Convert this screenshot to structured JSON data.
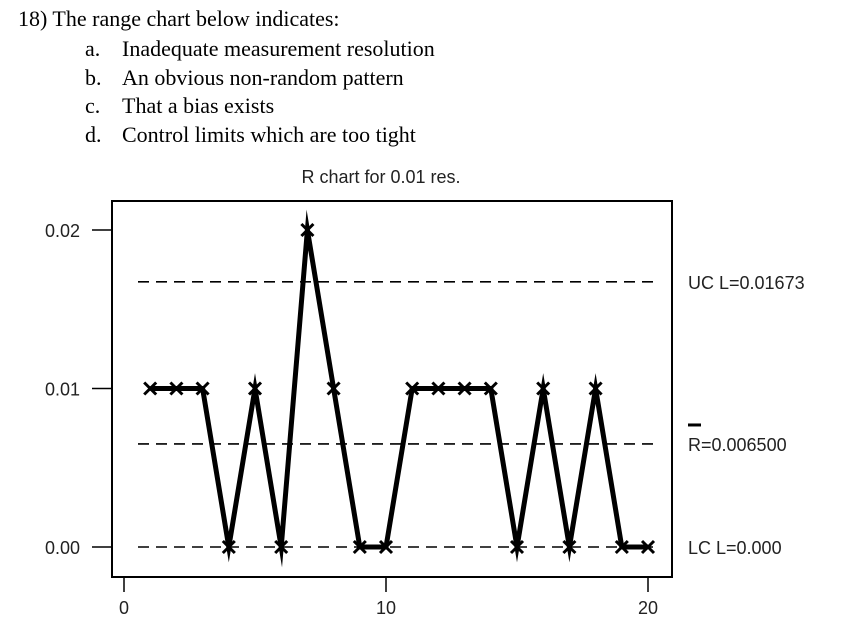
{
  "question": {
    "stem": "18) The range chart below indicates:",
    "options": [
      {
        "letter": "a.",
        "text": "Inadequate measurement resolution"
      },
      {
        "letter": "b.",
        "text": "An obvious non-random pattern"
      },
      {
        "letter": "c.",
        "text": "That a bias exists"
      },
      {
        "letter": "d.",
        "text": "Control limits which are too tight"
      }
    ]
  },
  "chart_data": {
    "type": "line",
    "title": "R chart for 0.01 res.",
    "xlabel": "",
    "ylabel": "",
    "xlim": [
      0,
      21
    ],
    "ylim": [
      0,
      0.02
    ],
    "x_ticks": [
      0,
      10,
      20
    ],
    "x_tick_labels": [
      "0",
      "10",
      "20"
    ],
    "y_ticks": [
      0.0,
      0.01,
      0.02
    ],
    "y_tick_labels": [
      "0.00",
      "0.01",
      "0.02"
    ],
    "grid": false,
    "series": [
      {
        "x": [
          1,
          2,
          3,
          4,
          5,
          6,
          7,
          8,
          9,
          10,
          11,
          12,
          13,
          14,
          15,
          16,
          17,
          18,
          19,
          20
        ],
        "values": [
          0.01,
          0.01,
          0.01,
          0.0,
          0.01,
          0.0,
          0.02,
          0.01,
          0.0,
          0.0,
          0.01,
          0.01,
          0.01,
          0.01,
          0.0,
          0.01,
          0.0,
          0.01,
          0.0,
          0.0
        ],
        "marker": "x",
        "color": "#000000"
      }
    ],
    "control_lines": [
      {
        "key": "ucl",
        "value": 0.01673,
        "label": "UC L=0.01673",
        "style": "dashed"
      },
      {
        "key": "rbar",
        "value": 0.0065,
        "label": "R=0.006500",
        "style": "dashed",
        "overbar": true
      },
      {
        "key": "lcl",
        "value": 0.0,
        "label": "LC L=0.000",
        "style": "dashed"
      }
    ]
  }
}
